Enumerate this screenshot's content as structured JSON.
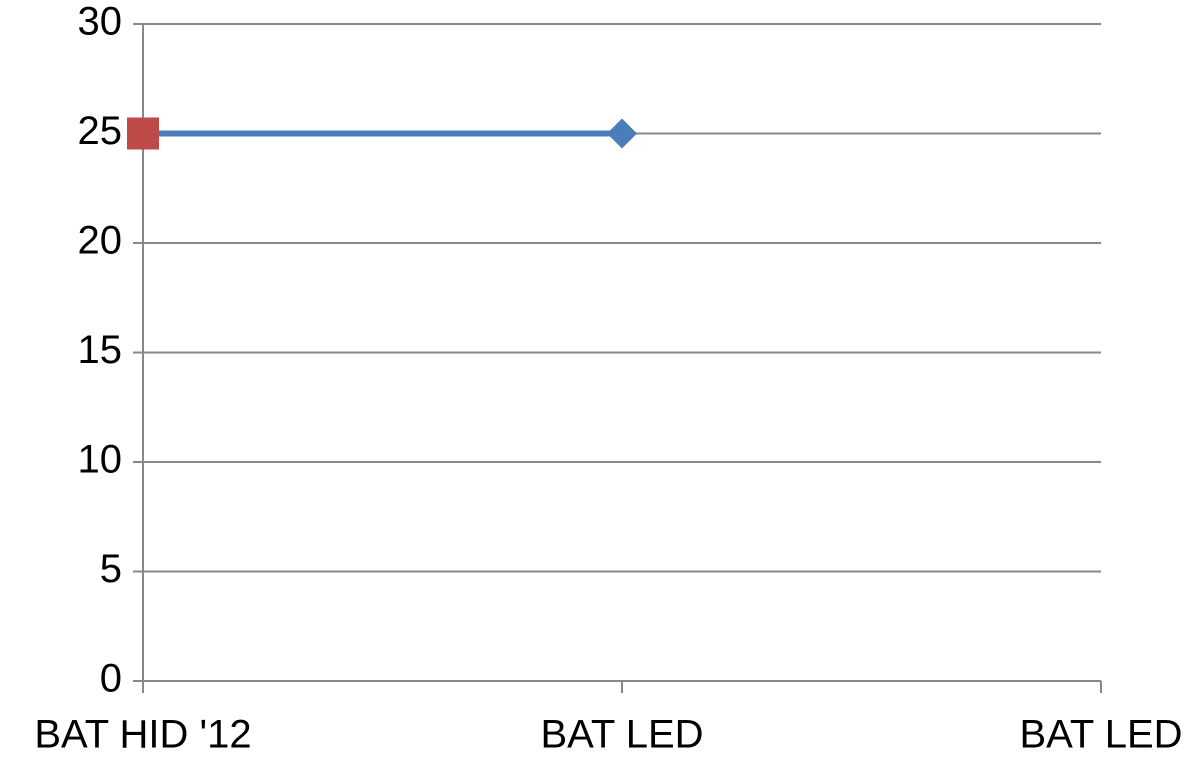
{
  "chart_data": {
    "type": "line",
    "categories": [
      "BAT HID '12",
      "BAT LED",
      "BAT LED"
    ],
    "series": [
      {
        "color": "#4a7ebb",
        "marker": "diamond",
        "values": [
          25,
          25,
          null
        ]
      },
      {
        "color": "#be4b48",
        "marker": "square",
        "values": [
          25,
          null,
          null
        ]
      }
    ],
    "ylim": [
      0,
      30
    ],
    "yticks": [
      0,
      5,
      10,
      15,
      20,
      25,
      30
    ],
    "grid": true
  }
}
